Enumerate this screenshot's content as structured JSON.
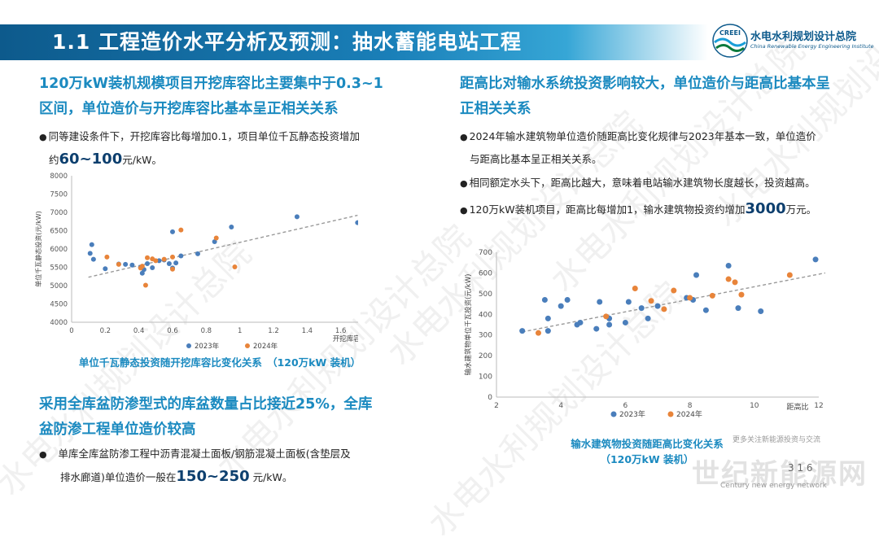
{
  "header": {
    "title": "1.1 工程造价水平分析及预测：抽水蓄能电站工程",
    "logo_cn": "水电水利规划设计总院",
    "logo_en": "China Renewable Energy Engineering Institute",
    "logo_mark": "CREEI"
  },
  "left": {
    "heading1_line1": "120万kW装机规模项目开挖库容比主要集中于0.3~1",
    "heading1_line2": "区间，单位造价与开挖库容比基本呈正相关关系",
    "bullet1_text": "同等建设条件下，开挖库容比每增加0.1，项目单位千瓦静态投资增加",
    "bullet1_prefix": "约",
    "bullet1_value": "60~100",
    "bullet1_unit": "元/kW。",
    "caption1": "单位千瓦静态投资随开挖库容比变化关系　（120万kW 装机）",
    "heading2_line1": "采用全库盆防渗型式的库盆数量占比接近25%，全库",
    "heading2_line2": "盆防渗工程单位造价较高",
    "bullet2_line1": "单库全库盆防渗工程中沥青混凝土面板/钢筋混凝土面板(含垫层及",
    "bullet2_line2_prefix": "排水廊道)单位造价一般在",
    "bullet2_value": "150~250",
    "bullet2_unit": " 元/kW。"
  },
  "right": {
    "heading_line1": "距高比对输水系统投资影响较大，单位造价与距高比基本呈",
    "heading_line2": "正相关关系",
    "bullet1_line1": "2024年输水建筑物单位造价随距高比变化规律与2023年基本一致，单位造价",
    "bullet1_line2": "与距高比基本呈正相关关系。",
    "bullet2": "相同额定水头下，距高比越大，意味着电站输水建筑物长度越长，投资越高。",
    "bullet3_prefix": "120万kW装机项目，距高比每增加1，输水建筑物投资约增加",
    "bullet3_value": "3000",
    "bullet3_unit": "万元。",
    "caption_line1": "输水建筑物投资随距高比变化关系",
    "caption_line2": "（120万kW 装机）"
  },
  "watermarks": {
    "text": "水电水利规划设计总院",
    "footer_cn": "世纪新能源网",
    "footer_en": "Century new energy network",
    "footer_small": "更多关注新能源投资与交流",
    "page_number": "3 1 6"
  },
  "colors": {
    "banner": "#1a7fb8",
    "heading": "#1b8ac0",
    "series_2023": "#4a7ebb",
    "series_2024": "#e8843a",
    "trend": "#999999"
  },
  "chart_data": [
    {
      "type": "scatter",
      "title": "",
      "xlabel": "开挖库容比",
      "ylabel": "单位千瓦静态投资(元/kW)",
      "xlim": [
        0,
        1.8
      ],
      "ylim": [
        4000,
        8000
      ],
      "xticks": [
        0,
        0.2,
        0.4,
        0.6,
        0.8,
        1,
        1.2,
        1.4,
        1.6,
        1.8
      ],
      "yticks": [
        4000,
        4500,
        5000,
        5500,
        6000,
        6500,
        7000,
        7500,
        8000
      ],
      "grid": false,
      "legend": "bottom",
      "trendline": {
        "x": [
          0.1,
          1.7
        ],
        "y": [
          5230,
          6920
        ]
      },
      "series": [
        {
          "name": "2023年",
          "color": "#4a7ebb",
          "points": [
            [
              0.11,
              5880
            ],
            [
              0.12,
              6120
            ],
            [
              0.13,
              5720
            ],
            [
              0.2,
              5460
            ],
            [
              0.28,
              5590
            ],
            [
              0.32,
              5580
            ],
            [
              0.36,
              5560
            ],
            [
              0.41,
              5500
            ],
            [
              0.42,
              5340
            ],
            [
              0.43,
              5440
            ],
            [
              0.45,
              5600
            ],
            [
              0.48,
              5490
            ],
            [
              0.52,
              5680
            ],
            [
              0.55,
              5700
            ],
            [
              0.58,
              5600
            ],
            [
              0.6,
              6470
            ],
            [
              0.6,
              5480
            ],
            [
              0.62,
              5620
            ],
            [
              0.65,
              5810
            ],
            [
              0.75,
              5870
            ],
            [
              0.85,
              6200
            ],
            [
              0.95,
              6600
            ],
            [
              1.34,
              6880
            ],
            [
              1.7,
              6720
            ]
          ]
        },
        {
          "name": "2024年",
          "color": "#e8843a",
          "points": [
            [
              0.21,
              5780
            ],
            [
              0.28,
              5580
            ],
            [
              0.41,
              5480
            ],
            [
              0.42,
              5530
            ],
            [
              0.44,
              5010
            ],
            [
              0.45,
              5760
            ],
            [
              0.48,
              5730
            ],
            [
              0.5,
              5680
            ],
            [
              0.55,
              5720
            ],
            [
              0.6,
              5780
            ],
            [
              0.6,
              5450
            ],
            [
              0.65,
              6520
            ],
            [
              0.86,
              6300
            ],
            [
              0.97,
              5510
            ]
          ]
        }
      ]
    },
    {
      "type": "scatter",
      "title": "",
      "xlabel": "距高比",
      "ylabel": "输水建筑物单位千瓦投资(元/kW)",
      "xlim": [
        2,
        12
      ],
      "ylim": [
        0,
        700
      ],
      "xticks": [
        2,
        4,
        6,
        8,
        10,
        12
      ],
      "yticks": [
        0,
        100,
        200,
        300,
        400,
        500,
        600,
        700
      ],
      "grid": false,
      "legend": "bottom",
      "trendline": {
        "x": [
          2.8,
          12.2
        ],
        "y": [
          315,
          600
        ]
      },
      "series": [
        {
          "name": "2023年",
          "color": "#4a7ebb",
          "points": [
            [
              2.8,
              320
            ],
            [
              3.5,
              470
            ],
            [
              3.6,
              380
            ],
            [
              3.6,
              320
            ],
            [
              4.0,
              440
            ],
            [
              4.2,
              470
            ],
            [
              4.5,
              350
            ],
            [
              4.6,
              360
            ],
            [
              5.1,
              330
            ],
            [
              5.2,
              460
            ],
            [
              5.5,
              350
            ],
            [
              5.5,
              380
            ],
            [
              6.0,
              360
            ],
            [
              6.1,
              460
            ],
            [
              6.5,
              430
            ],
            [
              6.7,
              380
            ],
            [
              7.0,
              440
            ],
            [
              7.9,
              480
            ],
            [
              8.1,
              470
            ],
            [
              8.2,
              590
            ],
            [
              8.5,
              420
            ],
            [
              9.2,
              635
            ],
            [
              9.5,
              430
            ],
            [
              10.2,
              415
            ],
            [
              11.9,
              665
            ]
          ]
        },
        {
          "name": "2024年",
          "color": "#e8843a",
          "points": [
            [
              3.3,
              310
            ],
            [
              5.4,
              390
            ],
            [
              6.3,
              525
            ],
            [
              6.8,
              465
            ],
            [
              7.2,
              425
            ],
            [
              7.5,
              515
            ],
            [
              8.0,
              480
            ],
            [
              8.7,
              490
            ],
            [
              9.2,
              570
            ],
            [
              9.4,
              555
            ],
            [
              9.6,
              495
            ],
            [
              11.1,
              590
            ]
          ]
        }
      ]
    }
  ]
}
